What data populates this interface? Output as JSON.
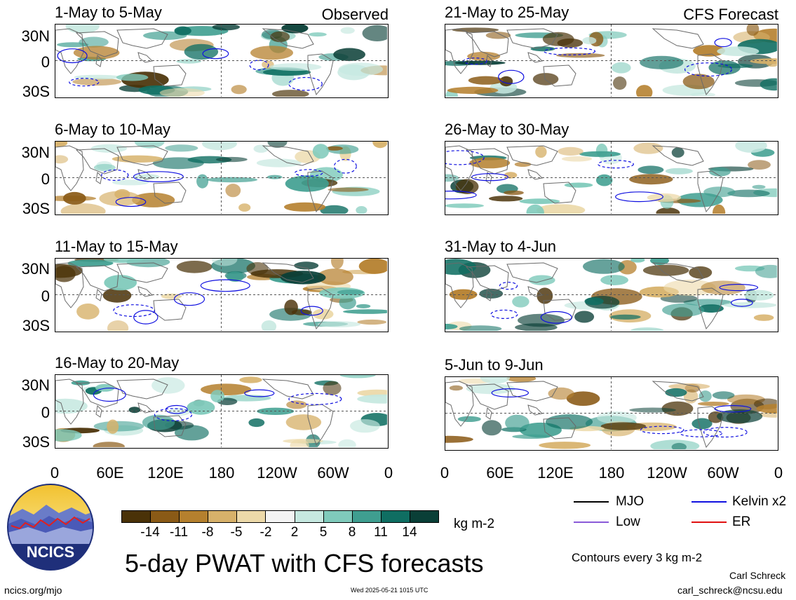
{
  "header": {
    "left_label": "Observed",
    "right_label": "CFS Forecast"
  },
  "panels": {
    "left": [
      {
        "title": "1-May to 5-May"
      },
      {
        "title": "6-May to 10-May"
      },
      {
        "title": "11-May to 15-May"
      },
      {
        "title": "16-May to 20-May"
      }
    ],
    "right": [
      {
        "title": "21-May to 25-May"
      },
      {
        "title": "26-May to 30-May"
      },
      {
        "title": "31-May to 4-Jun"
      },
      {
        "title": "5-Jun to 9-Jun"
      }
    ]
  },
  "axes": {
    "lat_labels": [
      "30N",
      "0",
      "30S"
    ],
    "lon_labels": [
      "0",
      "60E",
      "120E",
      "180",
      "120W",
      "60W",
      "0"
    ]
  },
  "colorbar": {
    "labels": [
      "-14",
      "-11",
      "-8",
      "-5",
      "-2",
      "2",
      "5",
      "8",
      "11",
      "14"
    ],
    "units": "kg m-2",
    "colors": [
      "#4a3208",
      "#8a5a16",
      "#b5802e",
      "#d7b16a",
      "#ecd9a9",
      "#f4f4f4",
      "#c6e8e0",
      "#7fcabb",
      "#3f9e90",
      "#0f6e62",
      "#0a3f37"
    ]
  },
  "legend": {
    "items": [
      {
        "label": "MJO",
        "color": "#000000"
      },
      {
        "label": "Kelvin x2",
        "color": "#1010e0"
      },
      {
        "label": "Low",
        "color": "#8a5ad8"
      },
      {
        "label": "ER",
        "color": "#e01010"
      }
    ],
    "contours_note": "Contours every 3 kg m-2"
  },
  "footer": {
    "main_title": "5-day PWAT with CFS forecasts",
    "logo_text": "NCICS",
    "site": "ncics.org/mjo",
    "timestamp": "Wed 2025-05-21 1015 UTC",
    "author": "Carl Schreck",
    "email": "carl_schreck@ncsu.edu"
  }
}
